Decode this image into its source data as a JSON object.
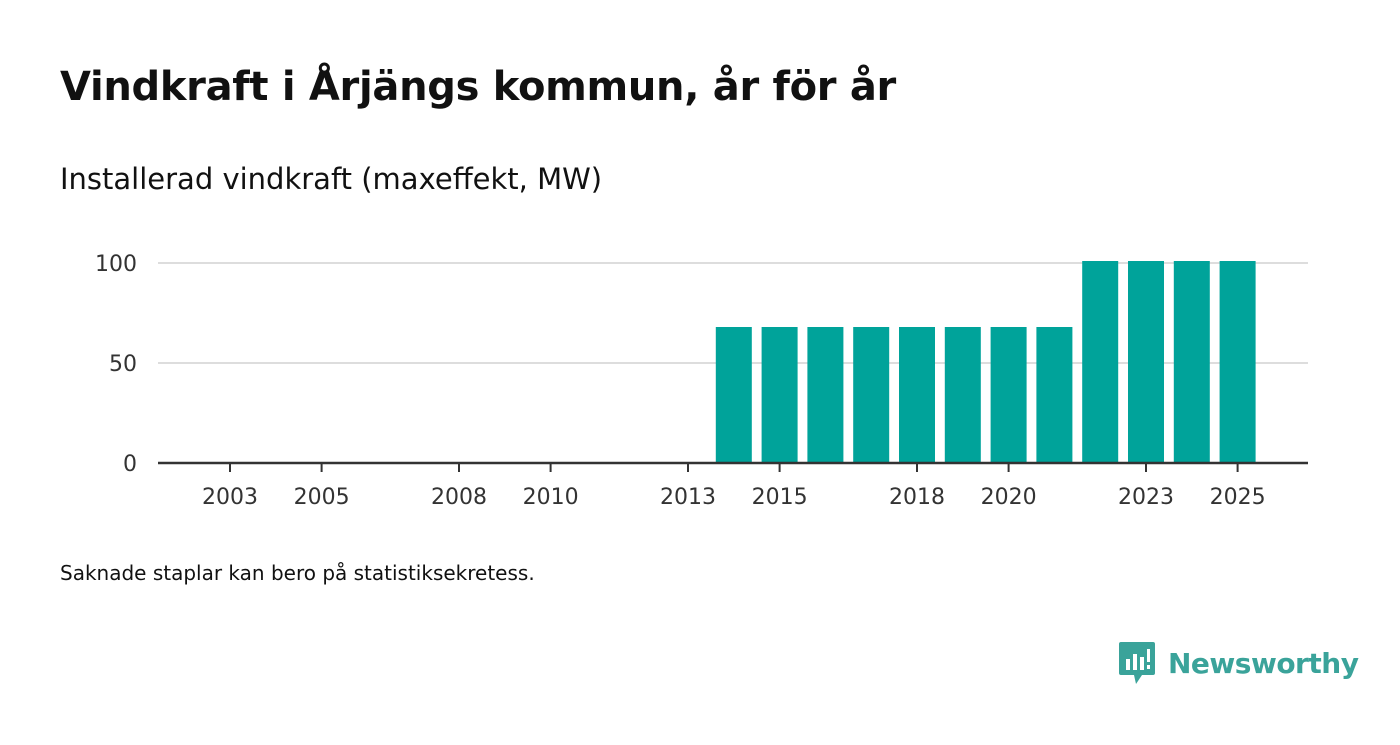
{
  "header": {
    "title": "Vindkraft i Årjängs kommun, år för år",
    "subtitle": "Installerad vindkraft (maxeffekt, MW)"
  },
  "footer": {
    "note": "Saknade staplar kan bero på statistiksekretess.",
    "brand": "Newsworthy"
  },
  "colors": {
    "bar": "#00a39a",
    "grid": "#dddddd",
    "axis": "#333333",
    "brand": "#3aa39a"
  },
  "chart_data": {
    "type": "bar",
    "title": "Vindkraft i Årjängs kommun, år för år",
    "subtitle": "Installerad vindkraft (maxeffekt, MW)",
    "xlabel": "",
    "ylabel": "",
    "categories": [
      2002,
      2003,
      2004,
      2005,
      2006,
      2007,
      2008,
      2009,
      2010,
      2011,
      2012,
      2013,
      2014,
      2015,
      2016,
      2017,
      2018,
      2019,
      2020,
      2021,
      2022,
      2023,
      2024,
      2025
    ],
    "values": [
      0,
      0,
      0,
      0,
      0,
      0,
      0,
      0,
      0,
      0,
      0,
      0,
      68,
      68,
      68,
      68,
      68,
      68,
      68,
      68,
      101,
      101,
      101,
      101
    ],
    "ylim": [
      0,
      100
    ],
    "yticks": [
      0,
      50,
      100
    ],
    "ytick_labels": [
      "0",
      "50",
      "100"
    ],
    "xticks": [
      2003,
      2005,
      2008,
      2010,
      2013,
      2015,
      2018,
      2020,
      2023,
      2025
    ],
    "xtick_labels": [
      "2003",
      "2005",
      "2008",
      "2010",
      "2013",
      "2015",
      "2018",
      "2020",
      "2023",
      "2025"
    ],
    "grid": true,
    "legend": "none"
  }
}
